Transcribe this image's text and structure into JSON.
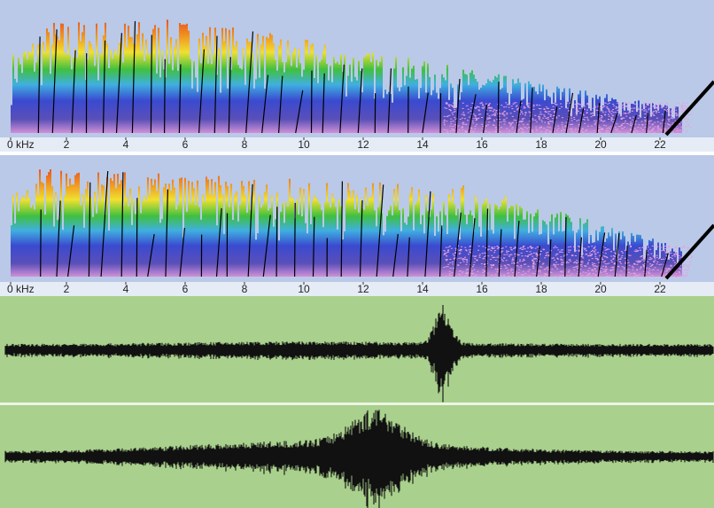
{
  "panels": [
    {
      "axis_labels": [
        "0 kHz",
        "2",
        "4",
        "6",
        "8",
        "10",
        "12",
        "14",
        "16",
        "18",
        "20",
        "22"
      ]
    },
    {
      "axis_labels": [
        "0 kHz",
        "2",
        "4",
        "6",
        "8",
        "10",
        "12",
        "14",
        "16",
        "18",
        "20",
        "22"
      ]
    }
  ]
}
